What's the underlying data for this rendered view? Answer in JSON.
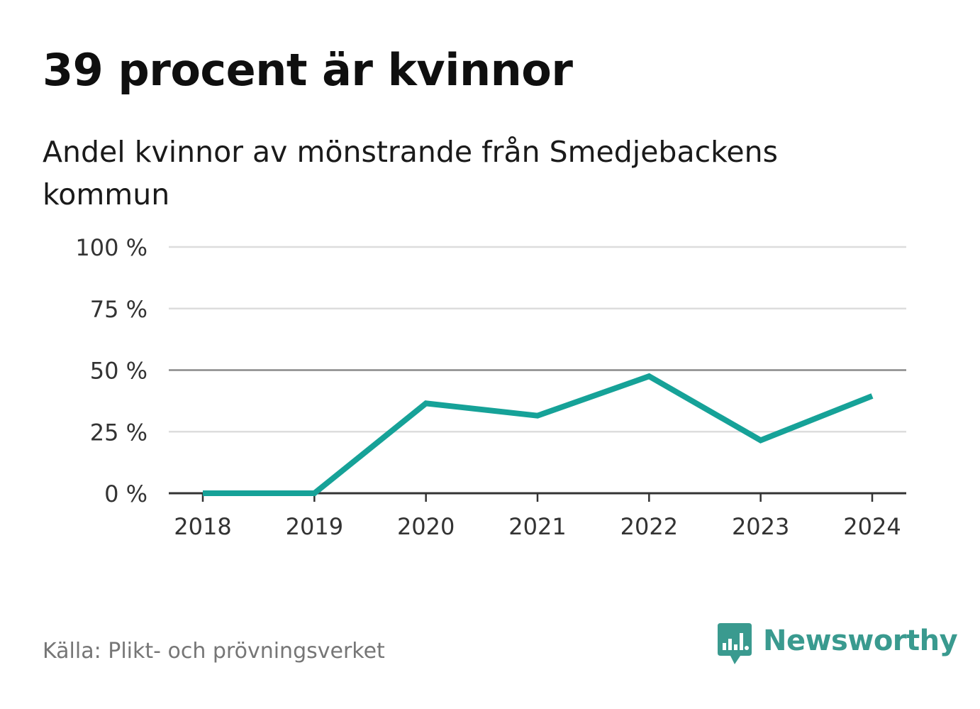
{
  "header": {
    "title": "39 procent är kvinnor",
    "subtitle": "Andel kvinnor av mönstrande från Smedjebackens kommun"
  },
  "footer": {
    "source": "Källa: Plikt- och prövningsverket",
    "brand": "Newsworthy",
    "brand_icon": "newsworthy-chart-icon"
  },
  "colors": {
    "line": "#16a298",
    "grid": "#dddddd",
    "reference_line": "#8a8a8a",
    "axis": "#333333",
    "brand": "#3a9a8f"
  },
  "chart_data": {
    "type": "line",
    "title": "39 procent är kvinnor",
    "subtitle": "Andel kvinnor av mönstrande från Smedjebackens kommun",
    "xlabel": "",
    "ylabel": "",
    "categories": [
      "2018",
      "2019",
      "2020",
      "2021",
      "2022",
      "2023",
      "2024"
    ],
    "series": [
      {
        "name": "Andel kvinnor",
        "values": [
          0,
          0,
          36.5,
          31.5,
          47.5,
          21.5,
          39.5
        ]
      }
    ],
    "ylim": [
      0,
      100
    ],
    "yticks": [
      0,
      25,
      50,
      75,
      100
    ],
    "ytick_labels": [
      "0 %",
      "25 %",
      "50 %",
      "75 %",
      "100 %"
    ],
    "reference_line": 50,
    "grid": true,
    "legend": "none"
  }
}
